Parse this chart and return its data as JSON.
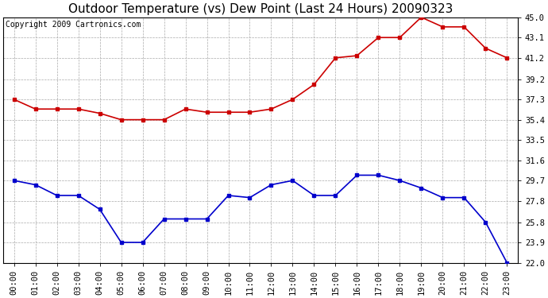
{
  "title": "Outdoor Temperature (vs) Dew Point (Last 24 Hours) 20090323",
  "copyright_text": "Copyright 2009 Cartronics.com",
  "hours": [
    "00:00",
    "01:00",
    "02:00",
    "03:00",
    "04:00",
    "05:00",
    "06:00",
    "07:00",
    "08:00",
    "09:00",
    "10:00",
    "11:00",
    "12:00",
    "13:00",
    "14:00",
    "15:00",
    "16:00",
    "17:00",
    "18:00",
    "19:00",
    "20:00",
    "21:00",
    "22:00",
    "23:00"
  ],
  "temp_red": [
    37.3,
    36.4,
    36.4,
    36.4,
    36.0,
    35.4,
    35.4,
    35.4,
    36.4,
    36.1,
    36.1,
    36.1,
    36.4,
    37.3,
    38.7,
    41.2,
    41.4,
    43.1,
    43.1,
    45.0,
    44.1,
    44.1,
    42.1,
    41.2
  ],
  "dew_blue": [
    29.7,
    29.3,
    28.3,
    28.3,
    27.0,
    23.9,
    23.9,
    26.1,
    26.1,
    26.1,
    28.3,
    28.1,
    29.3,
    29.7,
    28.3,
    28.3,
    30.2,
    30.2,
    29.7,
    29.0,
    28.1,
    28.1,
    25.8,
    22.0
  ],
  "ylim_min": 22.0,
  "ylim_max": 45.0,
  "yticks": [
    22.0,
    23.9,
    25.8,
    27.8,
    29.7,
    31.6,
    33.5,
    35.4,
    37.3,
    39.2,
    41.2,
    43.1,
    45.0
  ],
  "ytick_labels": [
    "22.0",
    "23.9",
    "25.8",
    "27.8",
    "29.7",
    "31.6",
    "33.5",
    "35.4",
    "37.3",
    "39.2",
    "41.2",
    "43.1",
    "45.0"
  ],
  "red_color": "#cc0000",
  "blue_color": "#0000cc",
  "grid_color": "#aaaaaa",
  "bg_color": "#ffffff",
  "title_fontsize": 11,
  "copyright_fontsize": 7,
  "tick_fontsize": 7.5,
  "marker": "s",
  "marker_size": 3,
  "line_width": 1.2
}
